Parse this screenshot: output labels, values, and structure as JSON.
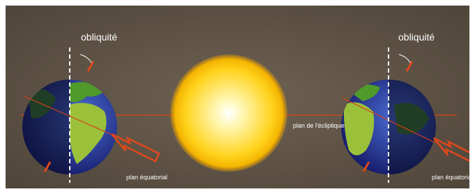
{
  "labels": {
    "obliquity_left": "obliquité",
    "obliquity_right": "obliquité",
    "ecliptic": "plan de l'écliptique",
    "equatorial_left": "plan équatorial",
    "equatorial_right": "plan équatorial"
  }
}
